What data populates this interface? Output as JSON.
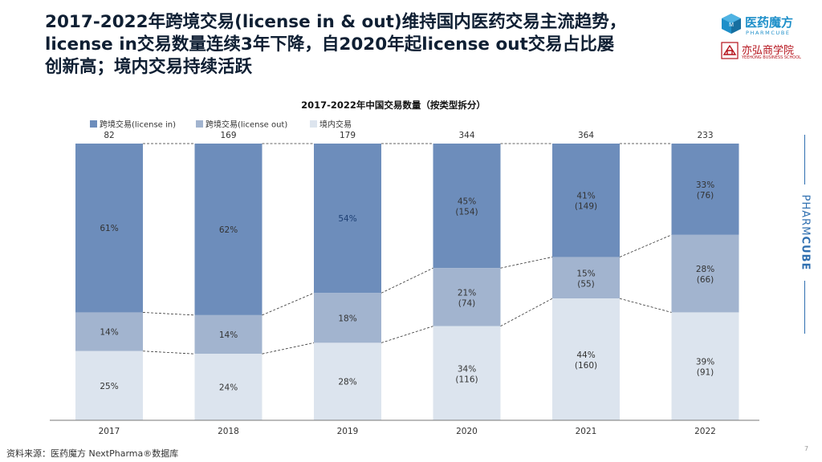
{
  "headline": {
    "line1": "2017-2022年跨境交易(license in & out)维持国内医药交易主流趋势，",
    "line2": "license in交易数量连续3年下降，自2020年起license out交易占比屡",
    "line3": "创新高；境内交易持续活跃"
  },
  "logos": {
    "brand_cn": "医药魔方",
    "brand_en": "PHARMCUBE",
    "school_cn": "亦弘商学院",
    "school_en": "YEEHONG BUSINESS SCHOOL",
    "side_light": "PHARM",
    "side_bold": "CUBE"
  },
  "chart_data": {
    "type": "bar",
    "stacked": true,
    "title": "2017-2022年中国交易数量（按类型拆分）",
    "categories": [
      "2017",
      "2018",
      "2019",
      "2020",
      "2021",
      "2022"
    ],
    "totals": [
      "82",
      "169",
      "179",
      "344",
      "364",
      "233"
    ],
    "series": [
      {
        "name": "跨境交易(license in)",
        "percents": [
          61,
          62,
          54,
          45,
          41,
          33
        ],
        "labels": [
          "61%",
          "62%",
          "54%",
          "45%",
          "41%",
          "33%"
        ],
        "counts": [
          "",
          "",
          "",
          "(154)",
          "(149)",
          "(76)"
        ],
        "color": "#6d8dbb"
      },
      {
        "name": "跨境交易(license out)",
        "percents": [
          14,
          14,
          18,
          21,
          15,
          28
        ],
        "labels": [
          "14%",
          "14%",
          "18%",
          "21%",
          "15%",
          "28%"
        ],
        "counts": [
          "",
          "",
          "",
          "(74)",
          "(55)",
          "(66)"
        ],
        "color": "#a2b4cf"
      },
      {
        "name": "境内交易",
        "percents": [
          25,
          24,
          28,
          34,
          44,
          39
        ],
        "labels": [
          "25%",
          "24%",
          "28%",
          "34%",
          "44%",
          "39%"
        ],
        "counts": [
          "",
          "",
          "",
          "(116)",
          "(160)",
          "(91)"
        ],
        "color": "#dce4ee"
      }
    ],
    "ylim": [
      0,
      100
    ],
    "connector_lines": "dashed",
    "legend_position": "top-left"
  },
  "footer": {
    "source": "资料来源：医药魔方 NextPharma®数据库",
    "page": "7"
  }
}
